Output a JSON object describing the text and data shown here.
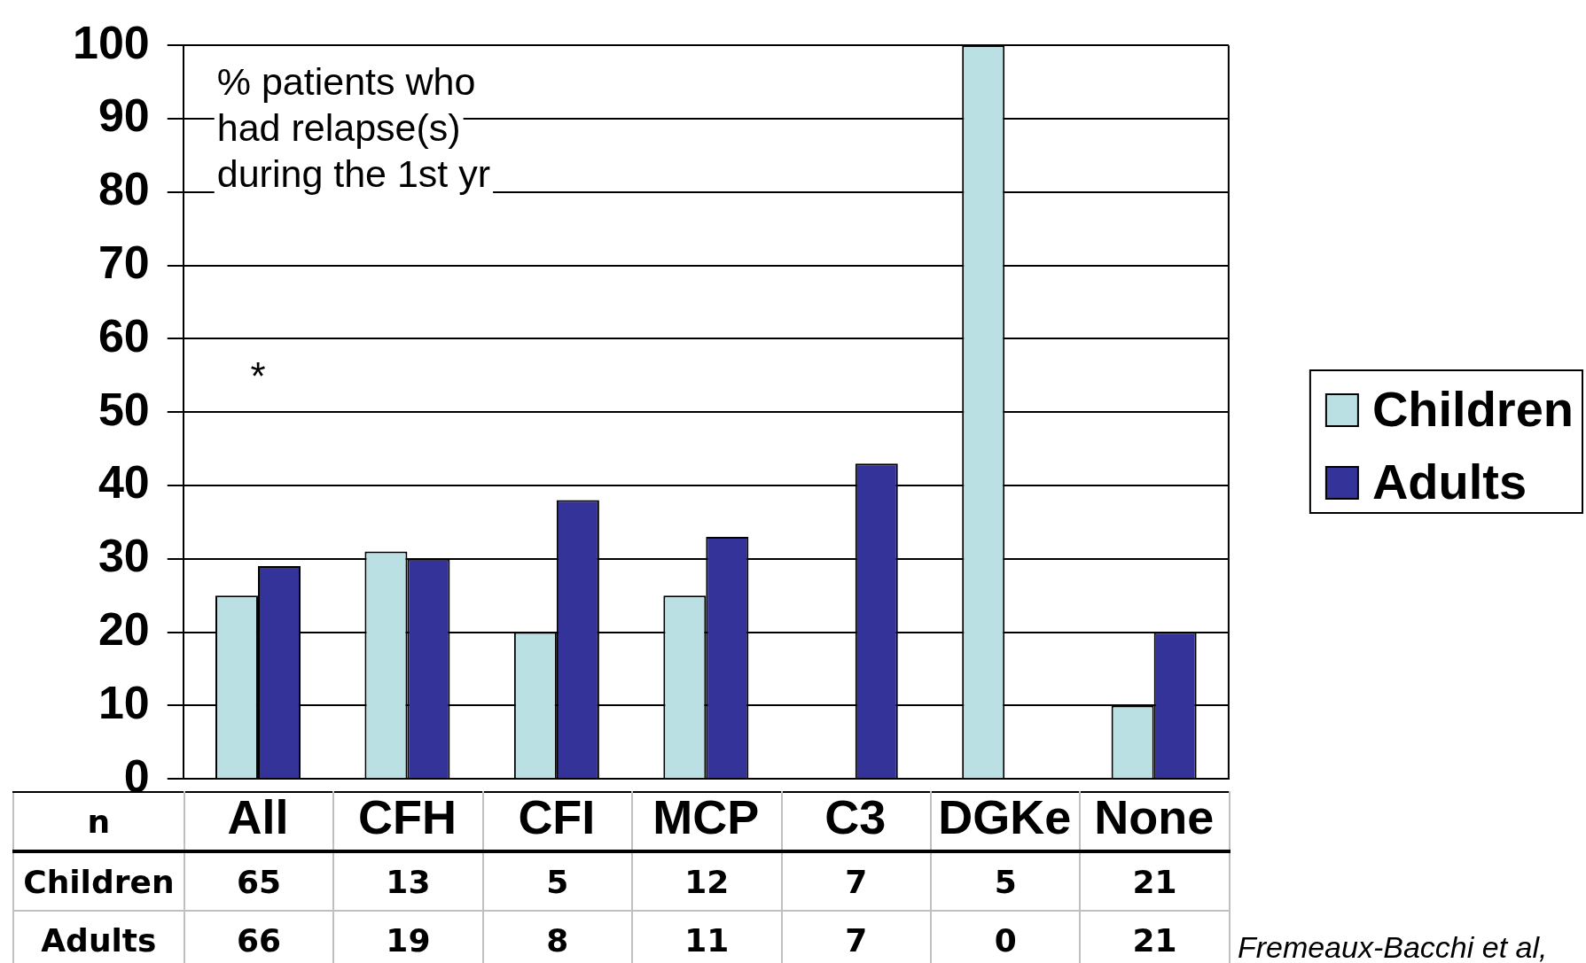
{
  "chart_data": {
    "type": "bar",
    "categories": [
      "All",
      "CFH",
      "CFI",
      "MCP",
      "C3",
      "DGKe",
      "None"
    ],
    "series": [
      {
        "name": "Children",
        "color": "#bbe0e3",
        "values": [
          25,
          31,
          20,
          25,
          0,
          100,
          10
        ]
      },
      {
        "name": "Adults",
        "color": "#333399",
        "values": [
          29,
          30,
          38,
          33,
          43,
          0,
          20
        ]
      }
    ],
    "ylim": [
      0,
      100
    ],
    "yticks": [
      0,
      10,
      20,
      30,
      40,
      50,
      60,
      70,
      80,
      90,
      100
    ],
    "grid": "y",
    "legend": "right",
    "annotations": [
      "% patients who had relapse(s) during the 1st yr",
      "*",
      "n",
      "65",
      "13",
      "5",
      "12",
      "7",
      "5",
      "21",
      "66",
      "19",
      "8",
      "11",
      "7",
      "0",
      "21",
      "Fremeaux-Bacchi et al,"
    ]
  }
}
